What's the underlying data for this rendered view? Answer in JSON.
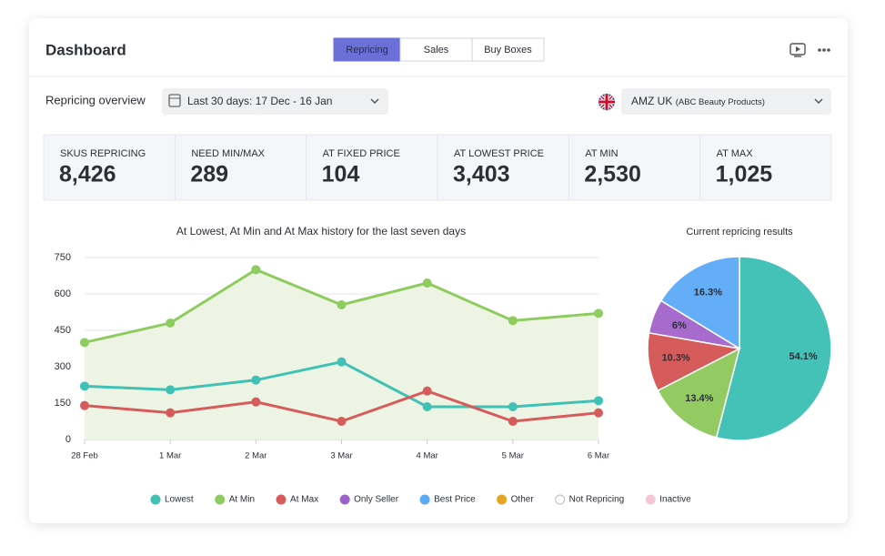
{
  "header": {
    "title": "Dashboard"
  },
  "tabs": {
    "items": [
      "Repricing",
      "Sales",
      "Buy Boxes"
    ],
    "active": 0
  },
  "filters": {
    "label": "Repricing overview",
    "date_range": "Last 30 days: 17 Dec - 16 Jan",
    "account": "AMZ UK",
    "account_detail": "(ABC Beauty Products)"
  },
  "stats": [
    {
      "label": "SKUS REPRICING",
      "value": "8,426",
      "color": "#2b2f36"
    },
    {
      "label": "NEED MIN/MAX",
      "value": "289",
      "color": "#2b2f36"
    },
    {
      "label": "AT FIXED PRICE",
      "value": "104",
      "color": "#2b2f36"
    },
    {
      "label": "AT LOWEST PRICE",
      "value": "3,403",
      "color": "#3fc1b5"
    },
    {
      "label": "AT MIN",
      "value": "2,530",
      "color": "#8fcc60"
    },
    {
      "label": "AT MAX",
      "value": "1,025",
      "color": "#d65b5b"
    }
  ],
  "chart_data": [
    {
      "type": "line",
      "title": "At Lowest, At Min and At Max history for the last seven days",
      "categories": [
        "28 Feb",
        "1 Mar",
        "2 Mar",
        "3 Mar",
        "4 Mar",
        "5 Mar",
        "6 Mar"
      ],
      "series": [
        {
          "name": "Lowest",
          "color": "#3fc1b5",
          "values": [
            220,
            205,
            245,
            320,
            135,
            135,
            160
          ]
        },
        {
          "name": "At Min",
          "color": "#8fcc60",
          "values": [
            400,
            480,
            700,
            555,
            645,
            490,
            520
          ],
          "area": "#eef4e4"
        },
        {
          "name": "At Max",
          "color": "#d65b5b",
          "values": [
            140,
            110,
            155,
            75,
            200,
            75,
            110
          ]
        }
      ],
      "ylim": [
        0,
        750
      ],
      "yticks": [
        0,
        150,
        300,
        450,
        600,
        750
      ],
      "grid": true
    },
    {
      "type": "pie",
      "title": "Current repricing results",
      "values": [
        54.1,
        13.4,
        10.3,
        6,
        16.3
      ],
      "value_labels": [
        "54.1%",
        "13.4%",
        "10.3%",
        "6%",
        "16.3%"
      ],
      "colors": [
        "#45c2b7",
        "#93cb62",
        "#d65b5b",
        "#a66bcc",
        "#64adf7"
      ]
    }
  ],
  "legend": [
    {
      "name": "Only Seller",
      "color": "#9d63c9"
    },
    {
      "name": "Best Price",
      "color": "#5aaaf5"
    },
    {
      "name": "Other",
      "color": "#e8a324"
    },
    {
      "name": "Not Repricing",
      "color": "#ffffff"
    },
    {
      "name": "Inactive",
      "color": "#f5c6d6"
    }
  ]
}
